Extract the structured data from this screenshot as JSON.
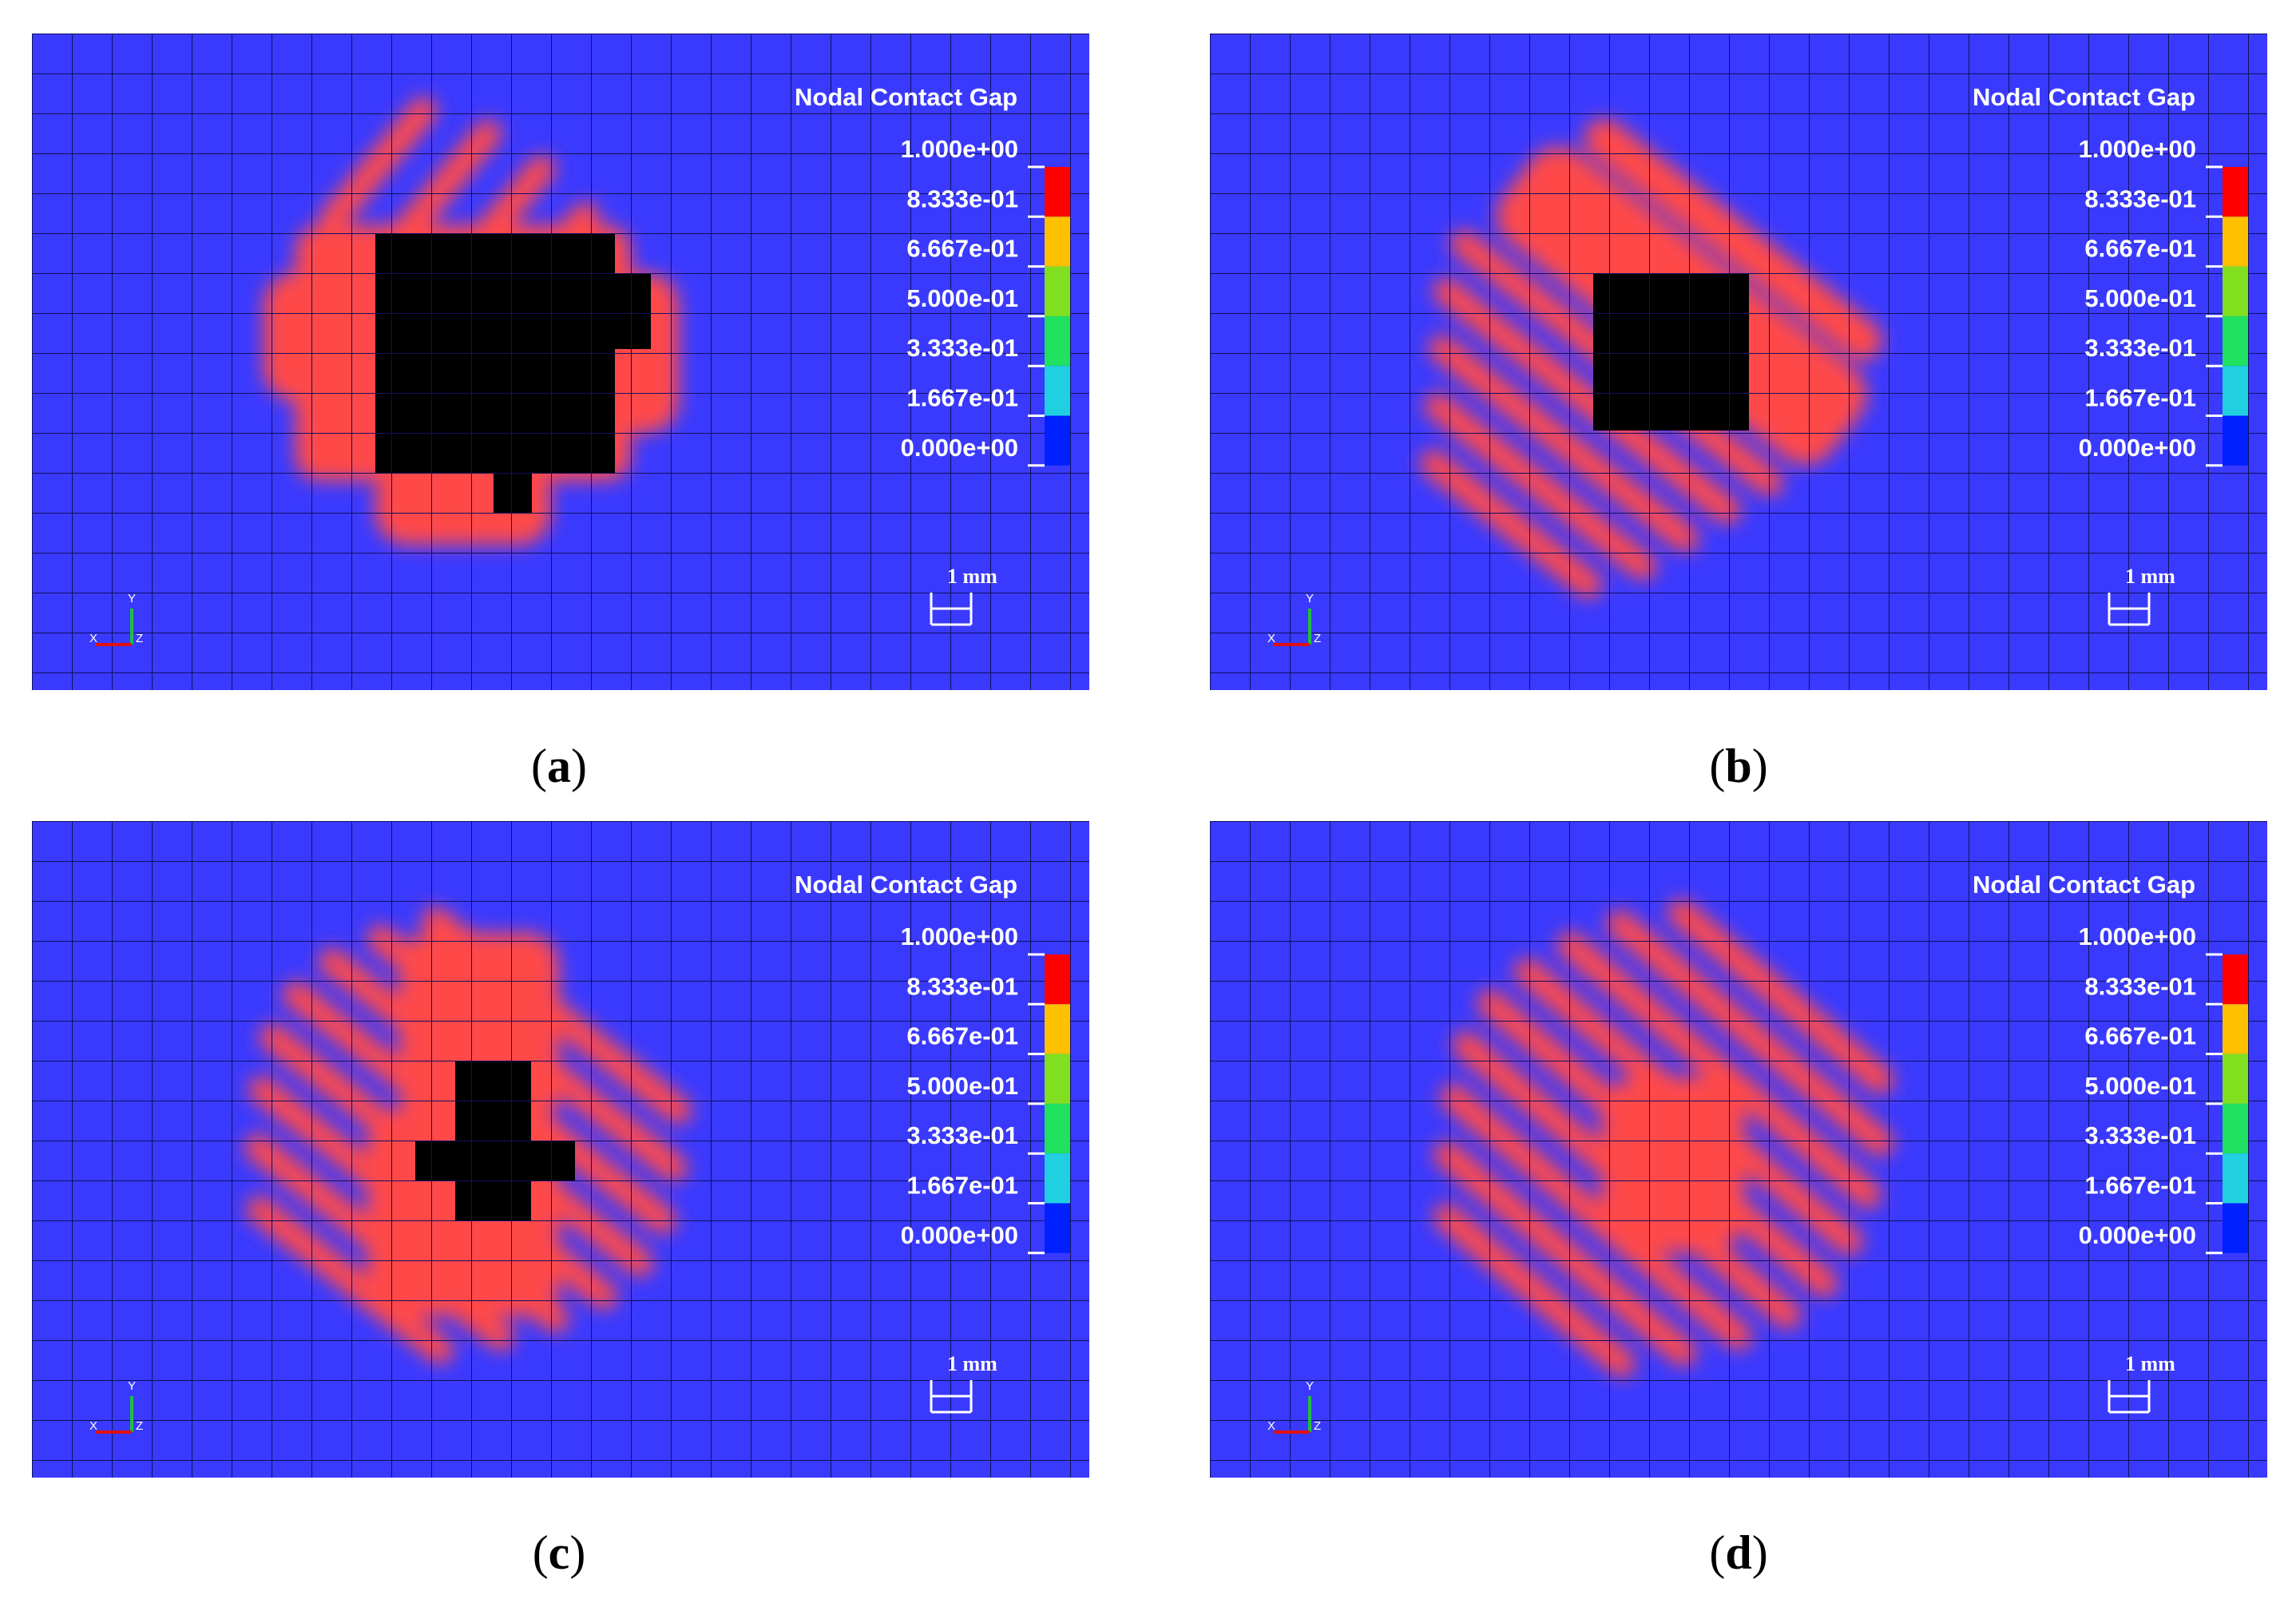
{
  "legend": {
    "title": "Nodal Contact Gap",
    "ticks": [
      "1.000e+00",
      "8.333e-01",
      "6.667e-01",
      "5.000e-01",
      "3.333e-01",
      "1.667e-01",
      "0.000e+00"
    ],
    "colors": [
      "#ff0000",
      "#ffc000",
      "#80e020",
      "#20e060",
      "#20d0e0",
      "#0020ff"
    ]
  },
  "scale_bar": {
    "label": "1 mm"
  },
  "axes_triad": {
    "x": "X",
    "y": "Y",
    "z": "Z"
  },
  "colors": {
    "background": "#3a3aff",
    "contact": "#ff4a4a",
    "void": "#000000",
    "grid": "#101060"
  },
  "panels": [
    {
      "id": "a",
      "caption": "a",
      "void_shape": "square-with-notches",
      "stripe_direction": "diagonal"
    },
    {
      "id": "b",
      "caption": "b",
      "void_shape": "square",
      "stripe_direction": "diagonal"
    },
    {
      "id": "c",
      "caption": "c",
      "void_shape": "cross",
      "stripe_direction": "diagonal"
    },
    {
      "id": "d",
      "caption": "d",
      "void_shape": "none",
      "stripe_direction": "diagonal"
    }
  ]
}
